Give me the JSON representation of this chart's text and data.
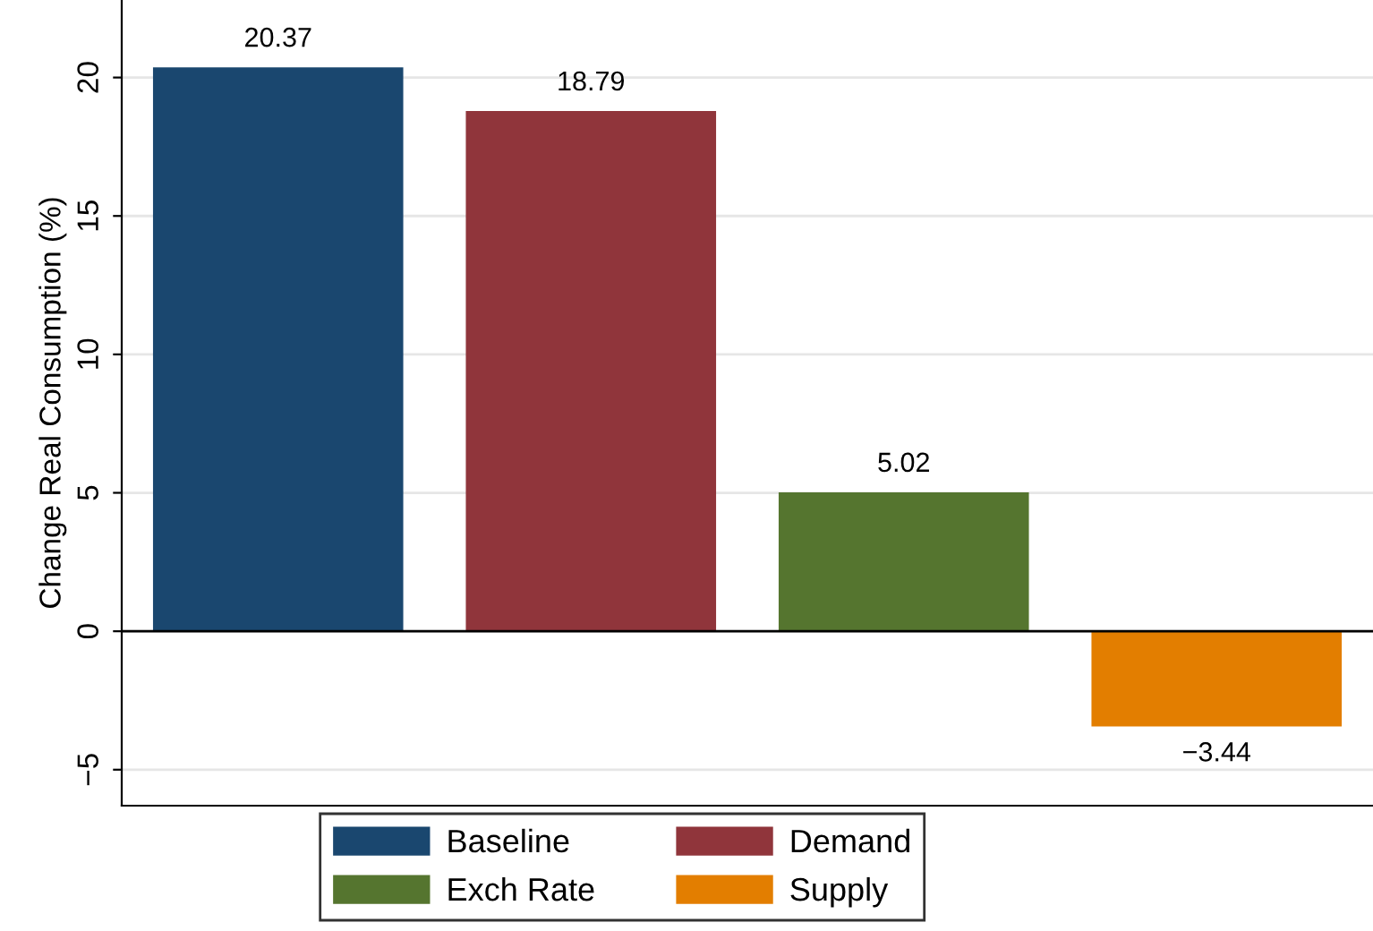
{
  "chart_data": {
    "type": "bar",
    "ylabel": "Change Real Consumption (%)",
    "categories": [
      null,
      null,
      null,
      null
    ],
    "series": [
      {
        "name": "Baseline",
        "color": "#1a476f",
        "values": [
          20.37,
          null,
          null,
          null
        ]
      },
      {
        "name": "Demand",
        "color": "#90353b",
        "values": [
          null,
          18.79,
          null,
          null
        ]
      },
      {
        "name": "Exch Rate",
        "color": "#55752f",
        "values": [
          null,
          null,
          5.02,
          null
        ]
      },
      {
        "name": "Supply",
        "color": "#e37e00",
        "values": [
          null,
          null,
          null,
          -3.44
        ]
      }
    ],
    "ylim": [
      -6.3,
      22.8
    ],
    "yticks": [
      -5,
      0,
      5,
      10,
      15,
      20
    ],
    "grid": "y",
    "legend": "bottom",
    "data_labels": true,
    "ref_lines": [
      {
        "axis": "y",
        "value": 0,
        "color": "#000000"
      }
    ]
  }
}
